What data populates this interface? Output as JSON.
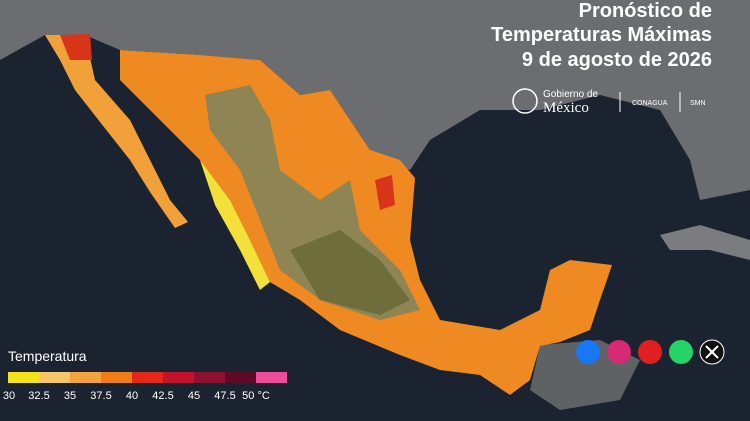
{
  "header": {
    "lines": [
      "Pronóstico de",
      "Temperaturas Máximas",
      "9 de agosto de 2026"
    ]
  },
  "logos": {
    "gobierno_line1": "Gobierno de",
    "gobierno_line2": "México",
    "conagua": "CONAGUA",
    "smn": "SMN"
  },
  "legend": {
    "title": "Temperatura",
    "items": [
      {
        "color": "#f4e21c",
        "label": "30"
      },
      {
        "color": "#f6c768",
        "label": "32.5"
      },
      {
        "color": "#f3a33c",
        "label": "35"
      },
      {
        "color": "#ef7c14",
        "label": "37.5"
      },
      {
        "color": "#e3281a",
        "label": "40"
      },
      {
        "color": "#c4122a",
        "label": "42.5"
      },
      {
        "color": "#8e1230",
        "label": "45"
      },
      {
        "color": "#5c0b22",
        "label": "47.5"
      },
      {
        "color": "#ef4c9c",
        "label": "50 °C"
      }
    ]
  }
}
